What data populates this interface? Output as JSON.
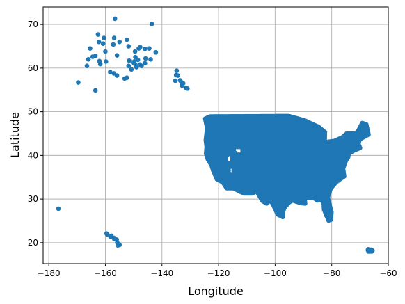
{
  "chart_data": {
    "type": "scatter",
    "title": "",
    "xlabel": "Longitude",
    "ylabel": "Latitude",
    "xlim": [
      -182,
      -60
    ],
    "ylim": [
      15.2,
      74
    ],
    "grid": true,
    "xticks": [
      -180,
      -160,
      -140,
      -120,
      -100,
      -80,
      -60
    ],
    "xtick_labels": [
      "−180",
      "−160",
      "−140",
      "−120",
      "−100",
      "−80",
      "−60"
    ],
    "yticks": [
      20,
      30,
      40,
      50,
      60,
      70
    ],
    "ytick_labels": [
      "20",
      "30",
      "40",
      "50",
      "60",
      "70"
    ],
    "marker_color": "#1f77b4",
    "series": [
      {
        "regions": [
          {
            "name": "alaska",
            "points": [
              [
                -156.6,
                71.3
              ],
              [
                -143.6,
                70.1
              ],
              [
                -162.6,
                67.7
              ],
              [
                -160.5,
                66.9
              ],
              [
                -156.9,
                66.9
              ],
              [
                -155.0,
                66.0
              ],
              [
                -152.4,
                66.5
              ],
              [
                -162.3,
                66.0
              ],
              [
                -160.8,
                65.6
              ],
              [
                -157.2,
                65.4
              ],
              [
                -151.8,
                65.0
              ],
              [
                -147.7,
                64.8
              ],
              [
                -148.2,
                64.5
              ],
              [
                -146.0,
                64.4
              ],
              [
                -144.5,
                64.5
              ],
              [
                -149.5,
                63.8
              ],
              [
                -142.2,
                63.6
              ],
              [
                -165.4,
                64.5
              ],
              [
                -160.0,
                63.8
              ],
              [
                -163.5,
                62.8
              ],
              [
                -166.0,
                62.0
              ],
              [
                -159.8,
                61.5
              ],
              [
                -151.6,
                61.7
              ],
              [
                -150.2,
                61.2
              ],
              [
                -149.8,
                61.5
              ],
              [
                -149.4,
                60.8
              ],
              [
                -151.8,
                60.5
              ],
              [
                -145.8,
                62.2
              ],
              [
                -144.0,
                62.0
              ],
              [
                -146.0,
                61.1
              ],
              [
                -147.8,
                60.8
              ],
              [
                -149.0,
                60.2
              ],
              [
                -157.0,
                58.8
              ],
              [
                -161.8,
                60.9
              ],
              [
                -166.5,
                60.5
              ],
              [
                -152.4,
                57.8
              ],
              [
                -153.2,
                57.6
              ],
              [
                -155.9,
                58.3
              ],
              [
                -158.3,
                59.1
              ],
              [
                -162.1,
                61.6
              ],
              [
                -164.5,
                62.6
              ],
              [
                -163.5,
                54.9
              ],
              [
                -169.6,
                56.7
              ],
              [
                -155.9,
                62.9
              ],
              [
                -148.5,
                61.9
              ],
              [
                -150.8,
                59.7
              ],
              [
                -147.2,
                60.5
              ],
              [
                -149.4,
                62.5
              ]
            ]
          },
          {
            "name": "southeast-alaska",
            "points": [
              [
                -134.8,
                59.4
              ],
              [
                -135.0,
                58.4
              ],
              [
                -134.4,
                58.3
              ],
              [
                -133.2,
                56.8
              ],
              [
                -132.5,
                56.5
              ],
              [
                -131.6,
                55.5
              ],
              [
                -131.0,
                55.3
              ],
              [
                -133.6,
                57.2
              ],
              [
                -135.3,
                57.1
              ],
              [
                -132.9,
                56.0
              ]
            ]
          },
          {
            "name": "hawaii",
            "points": [
              [
                -159.6,
                22.1
              ],
              [
                -159.3,
                21.9
              ],
              [
                -158.0,
                21.5
              ],
              [
                -157.8,
                21.3
              ],
              [
                -157.0,
                21.1
              ],
              [
                -156.5,
                20.8
              ],
              [
                -156.0,
                20.7
              ],
              [
                -155.8,
                20.0
              ],
              [
                -155.5,
                19.7
              ],
              [
                -155.1,
                19.6
              ],
              [
                -155.0,
                19.5
              ],
              [
                -155.6,
                19.4
              ],
              [
                -156.9,
                20.9
              ],
              [
                -158.2,
                21.4
              ],
              [
                -157.9,
                21.6
              ]
            ]
          },
          {
            "name": "midway",
            "points": [
              [
                -176.6,
                27.8
              ]
            ]
          },
          {
            "name": "puerto-rico",
            "points": [
              [
                -67.2,
                18.3
              ],
              [
                -66.9,
                18.4
              ],
              [
                -66.5,
                18.2
              ],
              [
                -66.1,
                18.4
              ],
              [
                -65.8,
                18.3
              ],
              [
                -66.0,
                18.1
              ],
              [
                -66.6,
                18.0
              ],
              [
                -67.0,
                18.0
              ],
              [
                -65.6,
                18.2
              ],
              [
                -67.1,
                18.5
              ],
              [
                -65.9,
                18.0
              ]
            ]
          }
        ]
      }
    ]
  }
}
